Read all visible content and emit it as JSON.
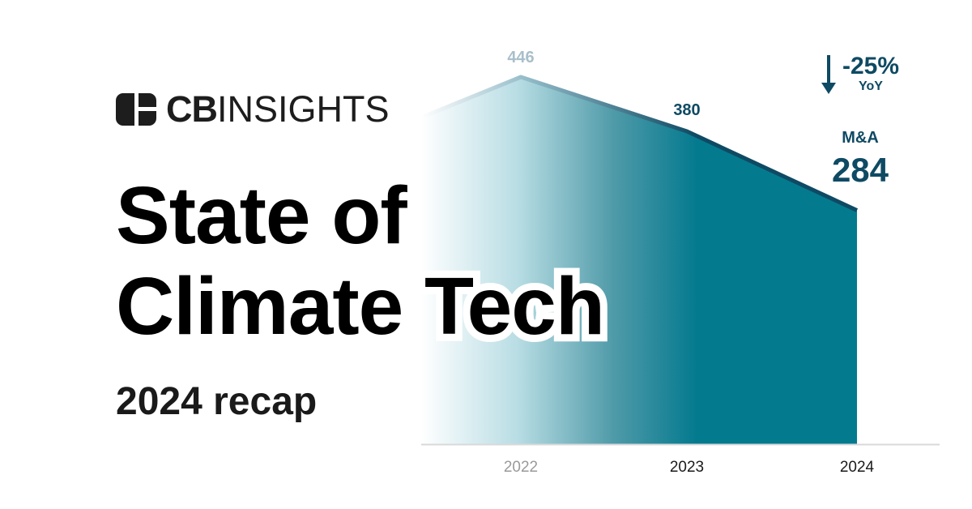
{
  "brand": {
    "logo_text_bold": "CB",
    "logo_text_light": "INSIGHTS"
  },
  "heading": {
    "line1": "State of",
    "line2": "Climate Tech"
  },
  "subtitle": "2024 recap",
  "callout": {
    "change": "-25%",
    "change_label": "YoY",
    "metric_label": "M&A",
    "metric_value": "284"
  },
  "colors": {
    "teal": "#047a8f",
    "navy": "#0e4a63",
    "text": "#000000"
  },
  "chart_data": {
    "type": "area",
    "title": "M&A",
    "categories": [
      "2022",
      "2023",
      "2024"
    ],
    "values": [
      446,
      380,
      284
    ],
    "data_labels": [
      "446",
      "380",
      ""
    ],
    "ylim": [
      0,
      500
    ],
    "xlabel": "",
    "ylabel": "",
    "grid": false,
    "legend": "none"
  }
}
